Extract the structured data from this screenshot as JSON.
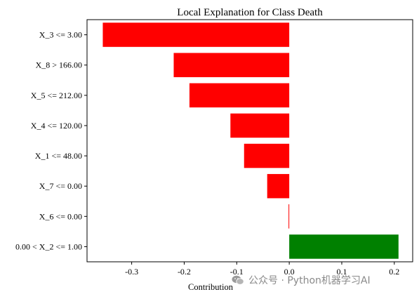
{
  "chart_data": {
    "type": "bar",
    "orientation": "horizontal",
    "title": "Local Explanation for Class Death",
    "xlabel": "Contribution",
    "ylabel": "",
    "categories": [
      "X_3 <= 3.00",
      "X_8 > 166.00",
      "X_5 <= 212.00",
      "X_4 <= 120.00",
      "X_1 <= 48.00",
      "X_7 <= 0.00",
      "X_6 <= 0.00",
      "0.00 < X_2 <= 1.00"
    ],
    "values": [
      -0.355,
      -0.22,
      -0.19,
      -0.112,
      -0.086,
      -0.042,
      -0.001,
      0.208
    ],
    "xlim": [
      -0.385,
      0.235
    ],
    "xticks": [
      -0.3,
      -0.2,
      -0.1,
      0.0,
      0.1,
      0.2
    ],
    "xtick_labels": [
      "-0.3",
      "-0.2",
      "-0.1",
      "0.0",
      "0.1",
      "0.2"
    ],
    "colors": {
      "negative": "#ff0000",
      "positive": "#008000"
    },
    "grid": false,
    "legend": "none"
  },
  "watermark": {
    "icon": "wechat-icon",
    "text": "公众号 · Python机器学习AI"
  }
}
